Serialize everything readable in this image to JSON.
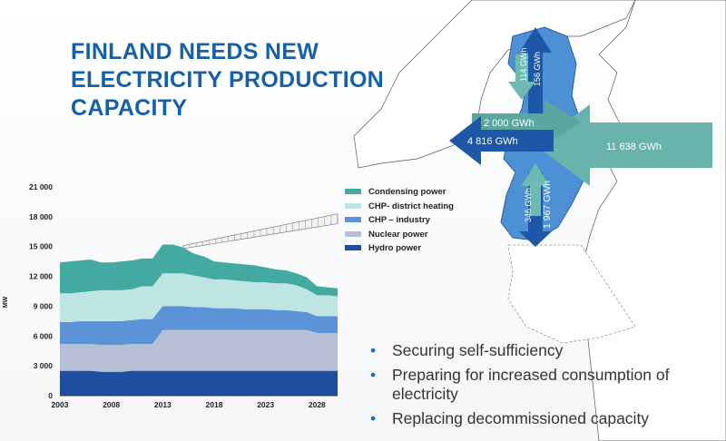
{
  "title_lines": [
    "FINLAND NEEDS NEW",
    "ELECTRICITY PRODUCTION",
    "CAPACITY"
  ],
  "map_flows": [
    {
      "id": "north-small",
      "label": "114 GWh"
    },
    {
      "id": "north-large",
      "label": "156 GWh"
    },
    {
      "id": "west-out",
      "label": "2 000 GWh"
    },
    {
      "id": "west-in",
      "label": "4 816 GWh"
    },
    {
      "id": "east-in",
      "label": "11 638 GWh"
    },
    {
      "id": "south-small",
      "label": "346 GWh"
    },
    {
      "id": "south-large",
      "label": "1 967 GWh"
    }
  ],
  "bullets": [
    "Securing self-sufficiency",
    "Preparing for increased consumption of electricity",
    "Replacing decommissioned capacity"
  ],
  "chart_data": {
    "type": "area",
    "stacked": true,
    "ylabel": "MW",
    "xlabel": "",
    "ylim": [
      0,
      21000
    ],
    "xlim": [
      2003,
      2030
    ],
    "yticks": [
      0,
      3000,
      6000,
      9000,
      12000,
      15000,
      18000,
      21000
    ],
    "yticklabels": [
      "0",
      "3 000",
      "6 000",
      "9 000",
      "12 000",
      "15 000",
      "18 000",
      "21 000"
    ],
    "xticks": [
      2003,
      2008,
      2013,
      2018,
      2023,
      2028
    ],
    "xticklabels": [
      "2003",
      "2008",
      "2013",
      "2018",
      "2023",
      "2028"
    ],
    "grid": false,
    "legend_position": "right",
    "x": [
      2003,
      2004,
      2005,
      2006,
      2007,
      2008,
      2009,
      2010,
      2011,
      2012,
      2013,
      2014,
      2015,
      2016,
      2017,
      2018,
      2019,
      2020,
      2021,
      2022,
      2023,
      2024,
      2025,
      2026,
      2027,
      2028,
      2029,
      2030
    ],
    "series": [
      {
        "name": "Hydro power",
        "color": "#1f4e9e",
        "values": [
          2500,
          2500,
          2500,
          2500,
          2400,
          2400,
          2400,
          2500,
          2500,
          2500,
          2500,
          2500,
          2500,
          2500,
          2500,
          2500,
          2500,
          2500,
          2500,
          2500,
          2500,
          2500,
          2500,
          2500,
          2500,
          2500,
          2500,
          2500
        ]
      },
      {
        "name": "Nuclear power",
        "color": "#b7bfd6",
        "values": [
          2700,
          2700,
          2700,
          2700,
          2700,
          2700,
          2700,
          2700,
          2700,
          2700,
          4100,
          4100,
          4100,
          4100,
          4100,
          4100,
          4100,
          4100,
          4100,
          4100,
          4100,
          4100,
          4100,
          4100,
          4100,
          3800,
          3800,
          3800
        ]
      },
      {
        "name": "CHP – industry",
        "color": "#5b93d6",
        "values": [
          2200,
          2200,
          2300,
          2300,
          2400,
          2400,
          2400,
          2400,
          2500,
          2500,
          2400,
          2400,
          2400,
          2300,
          2300,
          2200,
          2200,
          2200,
          2100,
          2100,
          2100,
          2000,
          2000,
          1900,
          1800,
          1700,
          1700,
          1700
        ]
      },
      {
        "name": "CHP- district heating",
        "color": "#bfe5e2",
        "values": [
          2900,
          2900,
          2900,
          3000,
          3100,
          3100,
          3100,
          3100,
          3300,
          3300,
          3300,
          3300,
          3300,
          3200,
          3000,
          2900,
          2900,
          2800,
          2800,
          2700,
          2700,
          2700,
          2700,
          2600,
          2300,
          2100,
          2100,
          2000
        ]
      },
      {
        "name": "Condensing power",
        "color": "#43aaa2",
        "values": [
          3100,
          3200,
          3200,
          3200,
          2800,
          2800,
          2900,
          2900,
          2800,
          2800,
          2900,
          2900,
          2600,
          2200,
          2100,
          1800,
          1700,
          1700,
          1700,
          1700,
          1500,
          1400,
          1300,
          1200,
          1200,
          900,
          800,
          800
        ]
      }
    ],
    "legend_order": [
      "Condensing power",
      "CHP- district heating",
      "CHP – industry",
      "Nuclear power",
      "Hydro power"
    ],
    "forecast_band": {
      "x": [
        2015,
        2030
      ],
      "low": [
        14800,
        17300
      ],
      "high": [
        15100,
        18300
      ]
    }
  }
}
